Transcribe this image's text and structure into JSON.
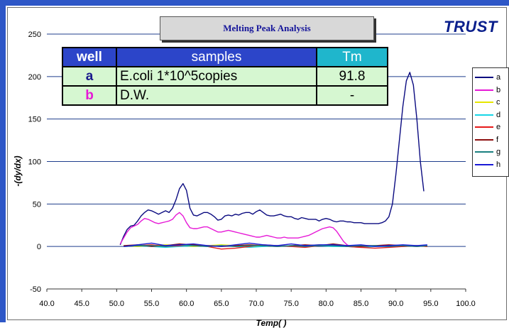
{
  "chart_data": {
    "type": "line",
    "title": "Melting Peak Analysis",
    "xlabel": "Temp(  )",
    "ylabel": "-(dy/dx)",
    "xlim": [
      40,
      100
    ],
    "ylim": [
      -50,
      250
    ],
    "x_ticks": [
      "40.0",
      "45.0",
      "50.0",
      "55.0",
      "60.0",
      "65.0",
      "70.0",
      "75.0",
      "80.0",
      "85.0",
      "90.0",
      "95.0",
      "100.0"
    ],
    "y_ticks": [
      "250",
      "200",
      "150",
      "100",
      "50",
      "0",
      "-50"
    ],
    "grid": "horizontal",
    "legend_position": "right",
    "series": [
      {
        "name": "a",
        "color": "#0a0a80",
        "x": [
          50.5,
          51.0,
          51.5,
          52.0,
          52.5,
          53.0,
          53.5,
          54.0,
          54.5,
          55.0,
          55.5,
          56.0,
          56.5,
          57.0,
          57.5,
          58.0,
          58.5,
          59.0,
          59.5,
          60.0,
          60.5,
          61.0,
          61.5,
          62.0,
          62.5,
          63.0,
          63.5,
          64.0,
          64.5,
          65.0,
          65.5,
          66.0,
          66.5,
          67.0,
          67.5,
          68.0,
          68.5,
          69.0,
          69.5,
          70.0,
          70.5,
          71.0,
          71.5,
          72.0,
          72.5,
          73.0,
          73.5,
          74.0,
          74.5,
          75.0,
          75.5,
          76.0,
          76.5,
          77.0,
          77.5,
          78.0,
          78.5,
          79.0,
          79.5,
          80.0,
          80.5,
          81.0,
          81.5,
          82.0,
          82.5,
          83.0,
          83.5,
          84.0,
          84.5,
          85.0,
          85.5,
          86.0,
          86.5,
          87.0,
          87.5,
          88.0,
          88.5,
          89.0,
          89.5,
          90.0,
          90.5,
          91.0,
          91.5,
          92.0,
          92.5,
          93.0,
          93.5,
          94.0
        ],
        "values": [
          2,
          12,
          20,
          24,
          25,
          30,
          36,
          40,
          43,
          42,
          40,
          38,
          40,
          42,
          40,
          45,
          55,
          68,
          74,
          66,
          45,
          37,
          36,
          38,
          40,
          40,
          38,
          35,
          31,
          32,
          36,
          37,
          36,
          38,
          37,
          39,
          40,
          40,
          38,
          41,
          43,
          40,
          37,
          36,
          36,
          37,
          38,
          36,
          35,
          35,
          33,
          32,
          34,
          33,
          32,
          32,
          32,
          30,
          32,
          33,
          32,
          30,
          29,
          30,
          30,
          29,
          29,
          28,
          28,
          28,
          27,
          27,
          27,
          27,
          27,
          28,
          30,
          35,
          50,
          85,
          125,
          165,
          195,
          205,
          190,
          150,
          100,
          65
        ]
      },
      {
        "name": "b",
        "color": "#e619d6",
        "x": [
          50.5,
          51.0,
          51.5,
          52.0,
          52.5,
          53.0,
          53.5,
          54.0,
          54.5,
          55.0,
          55.5,
          56.0,
          56.5,
          57.0,
          57.5,
          58.0,
          58.5,
          59.0,
          59.5,
          60.0,
          60.5,
          61.0,
          61.5,
          62.0,
          62.5,
          63.0,
          63.5,
          64.0,
          64.5,
          65.0,
          65.5,
          66.0,
          66.5,
          67.0,
          67.5,
          68.0,
          68.5,
          69.0,
          69.5,
          70.0,
          70.5,
          71.0,
          71.5,
          72.0,
          72.5,
          73.0,
          73.5,
          74.0,
          74.5,
          75.0,
          75.5,
          76.0,
          76.5,
          77.0,
          77.5,
          78.0,
          78.5,
          79.0,
          79.5,
          80.0,
          80.5,
          81.0,
          81.5,
          82.0,
          82.5,
          83.0,
          83.5
        ],
        "values": [
          3,
          10,
          17,
          22,
          24,
          26,
          30,
          33,
          32,
          30,
          28,
          27,
          28,
          29,
          30,
          32,
          37,
          40,
          36,
          28,
          22,
          21,
          21,
          22,
          23,
          23,
          21,
          19,
          17,
          17,
          18,
          19,
          18,
          17,
          16,
          15,
          14,
          13,
          12,
          11,
          11,
          12,
          13,
          12,
          11,
          10,
          10,
          11,
          10,
          10,
          10,
          10,
          11,
          12,
          13,
          15,
          17,
          19,
          21,
          22,
          23,
          22,
          18,
          12,
          6,
          2,
          0
        ]
      },
      {
        "name": "c",
        "color": "#e6e600",
        "x": [
          51,
          53,
          55,
          57,
          59,
          61,
          63,
          65,
          67,
          69,
          71,
          73,
          75,
          77,
          79,
          81,
          83,
          85,
          87,
          89,
          91,
          93,
          94.5
        ],
        "values": [
          1,
          0,
          1,
          2,
          1,
          0,
          1,
          2,
          1,
          0,
          1,
          1,
          0,
          1,
          2,
          1,
          0,
          1,
          1,
          0,
          1,
          1,
          0
        ]
      },
      {
        "name": "d",
        "color": "#18d6e6",
        "x": [
          51,
          53,
          55,
          57,
          59,
          61,
          63,
          65,
          67,
          69,
          71,
          73,
          75,
          77,
          79,
          81,
          83,
          85,
          87,
          89,
          91,
          93,
          94.5
        ],
        "values": [
          0,
          1,
          0,
          -1,
          0,
          1,
          0,
          1,
          0,
          -1,
          0,
          1,
          0,
          0,
          1,
          0,
          0,
          -1,
          0,
          0,
          0,
          1,
          0
        ]
      },
      {
        "name": "e",
        "color": "#e61a1a",
        "x": [
          51,
          53,
          55,
          57,
          59,
          61,
          63,
          65,
          67,
          69,
          71,
          73,
          75,
          77,
          79,
          81,
          83,
          85,
          87,
          89,
          91,
          93,
          94.5
        ],
        "values": [
          0,
          1,
          2,
          0,
          1,
          2,
          0,
          -3,
          -2,
          0,
          2,
          1,
          0,
          -1,
          1,
          2,
          0,
          -1,
          -2,
          -1,
          0,
          1,
          0
        ]
      },
      {
        "name": "f",
        "color": "#8c1010",
        "x": [
          51,
          53,
          55,
          57,
          59,
          61,
          63,
          65,
          67,
          69,
          71,
          73,
          75,
          77,
          79,
          81,
          83,
          85,
          87,
          89,
          91,
          93,
          94.5
        ],
        "values": [
          1,
          2,
          0,
          1,
          3,
          2,
          1,
          0,
          1,
          2,
          1,
          0,
          1,
          2,
          1,
          3,
          1,
          0,
          1,
          2,
          1,
          0,
          1
        ]
      },
      {
        "name": "g",
        "color": "#1a8080",
        "x": [
          51,
          53,
          55,
          57,
          59,
          61,
          63,
          65,
          67,
          69,
          71,
          73,
          75,
          77,
          79,
          81,
          83,
          85,
          87,
          89,
          91,
          93,
          94.5
        ],
        "values": [
          0,
          1,
          1,
          0,
          2,
          1,
          0,
          1,
          0,
          1,
          1,
          0,
          1,
          0,
          1,
          1,
          0,
          1,
          1,
          0,
          1,
          0,
          1
        ]
      },
      {
        "name": "h",
        "color": "#1a1ad6",
        "x": [
          51,
          53,
          55,
          57,
          59,
          61,
          63,
          65,
          67,
          69,
          71,
          73,
          75,
          77,
          79,
          81,
          83,
          85,
          87,
          89,
          91,
          93,
          94.5
        ],
        "values": [
          0,
          2,
          4,
          1,
          2,
          3,
          1,
          0,
          2,
          4,
          2,
          1,
          3,
          1,
          2,
          2,
          1,
          2,
          0,
          1,
          2,
          1,
          2
        ]
      }
    ]
  },
  "logo_text": "TRUST",
  "sample_table": {
    "headers": {
      "well": "well",
      "samples": "samples",
      "tm": "Tm"
    },
    "rows": [
      {
        "well": "a",
        "sample": "E.coli 1*10^5copies",
        "tm": "91.8",
        "well_color": "#1a1a8c"
      },
      {
        "well": "b",
        "sample": "D.W.",
        "tm": "-",
        "well_color": "#e619d6"
      }
    ]
  },
  "colors": {
    "frame_bar": "#2e57c7",
    "gridline": "#1f3d8c",
    "table_header": "#2c45c9",
    "tm_header": "#1fb6cc",
    "table_body": "#d6f7d1"
  }
}
